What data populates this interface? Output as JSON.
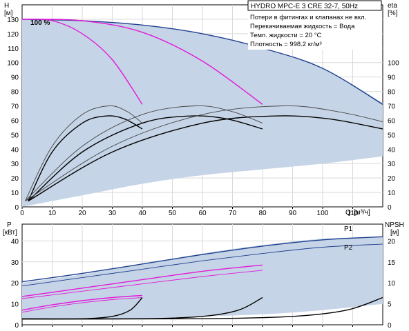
{
  "chart_data": [
    {
      "type": "line",
      "name_box": "HYDRO MPC-E 3 CRE 32-7, 50Hz",
      "info": [
        "Потери в фитингах и клапанах не вкл.",
        "Перекачиваемая жидкость = Вода",
        "Темп. жидкости = 20 °C",
        "Плотность = 998.2 кг/м³"
      ],
      "speed_label": "100 %",
      "ylabel_left": "H",
      "ylabel_left_unit": "[м]",
      "ylabel_right": "eta",
      "ylabel_right_unit": "[%]",
      "xlabel": "Q",
      "xlabel_unit": "[м³/ч]",
      "xlim": [
        0,
        120
      ],
      "ylim_left": [
        0,
        140
      ],
      "ylim_right": [
        0,
        140
      ],
      "xticks": [
        0,
        10,
        20,
        30,
        40,
        50,
        60,
        70,
        80,
        90,
        100,
        110
      ],
      "yticks_left": [
        0,
        10,
        20,
        30,
        40,
        50,
        60,
        70,
        80,
        90,
        100,
        110,
        120,
        130
      ],
      "yticks_right": [
        0,
        10,
        20,
        30,
        40,
        50,
        60,
        70,
        80,
        90,
        100
      ],
      "grid": true,
      "operating_area": {
        "upper": [
          [
            0,
            130
          ],
          [
            20,
            129
          ],
          [
            40,
            126
          ],
          [
            60,
            120
          ],
          [
            80,
            110
          ],
          [
            100,
            96
          ],
          [
            120,
            72
          ]
        ],
        "lower": [
          [
            0,
            0
          ],
          [
            20,
            8
          ],
          [
            40,
            16
          ],
          [
            60,
            22
          ],
          [
            80,
            26
          ],
          [
            100,
            30
          ],
          [
            120,
            35
          ]
        ]
      },
      "series": [
        {
          "role": "H max 3 pumps",
          "color": "#1f3f8f",
          "values": [
            [
              0,
              130
            ],
            [
              20,
              129
            ],
            [
              40,
              126
            ],
            [
              60,
              120
            ],
            [
              80,
              110
            ],
            [
              100,
              96
            ],
            [
              120,
              71
            ]
          ]
        },
        {
          "role": "H 1 pump",
          "color": "#e21ad8",
          "values": [
            [
              0,
              130
            ],
            [
              10,
              129
            ],
            [
              20,
              120
            ],
            [
              30,
              102
            ],
            [
              40,
              71
            ]
          ]
        },
        {
          "role": "H 2 pumps",
          "color": "#e21ad8",
          "values": [
            [
              0,
              130
            ],
            [
              20,
              129
            ],
            [
              40,
              121
            ],
            [
              60,
              101
            ],
            [
              80,
              71
            ]
          ]
        },
        {
          "role": "eta 1 pump thin",
          "color": "#444444",
          "values": [
            [
              1,
              4
            ],
            [
              10,
              42
            ],
            [
              20,
              64
            ],
            [
              29,
              70
            ],
            [
              35,
              66
            ],
            [
              40,
              58
            ]
          ]
        },
        {
          "role": "eta 1 pump",
          "color": "#000000",
          "values": [
            [
              2,
              4
            ],
            [
              10,
              38
            ],
            [
              20,
              58
            ],
            [
              28,
              63
            ],
            [
              34,
              61
            ],
            [
              40,
              54
            ]
          ]
        },
        {
          "role": "eta 2 pumps thin",
          "color": "#444444",
          "values": [
            [
              1,
              4
            ],
            [
              20,
              42
            ],
            [
              40,
              64
            ],
            [
              58,
              70
            ],
            [
              70,
              66
            ],
            [
              80,
              58
            ]
          ]
        },
        {
          "role": "eta 2 pumps",
          "color": "#000000",
          "values": [
            [
              2,
              4
            ],
            [
              20,
              38
            ],
            [
              40,
              58
            ],
            [
              56,
              63
            ],
            [
              68,
              61
            ],
            [
              80,
              54
            ]
          ]
        },
        {
          "role": "eta 3 pumps thin",
          "color": "#444444",
          "values": [
            [
              1,
              4
            ],
            [
              30,
              42
            ],
            [
              60,
              64
            ],
            [
              87,
              70
            ],
            [
              105,
              66
            ],
            [
              120,
              59
            ]
          ]
        },
        {
          "role": "eta 3 pumps",
          "color": "#000000",
          "values": [
            [
              2,
              4
            ],
            [
              30,
              38
            ],
            [
              60,
              58
            ],
            [
              84,
              63
            ],
            [
              102,
              61
            ],
            [
              120,
              54
            ]
          ]
        }
      ]
    },
    {
      "type": "line",
      "ylabel_left": "P",
      "ylabel_left_unit": "[кВт]",
      "ylabel_right": "NPSH",
      "ylabel_right_unit": "[м]",
      "xlim": [
        0,
        120
      ],
      "ylim_left": [
        0,
        48
      ],
      "ylim_right": [
        0,
        24
      ],
      "yticks_left": [
        0,
        10,
        20,
        30,
        40
      ],
      "yticks_right": [
        0,
        5,
        10,
        15,
        20
      ],
      "grid": true,
      "series_labels": [
        "P1",
        "P2"
      ],
      "operating_area": {
        "upper": [
          [
            0,
            20
          ],
          [
            20,
            24
          ],
          [
            40,
            29
          ],
          [
            60,
            34
          ],
          [
            80,
            38
          ],
          [
            100,
            41
          ],
          [
            120,
            42
          ]
        ],
        "lower": [
          [
            0,
            3
          ],
          [
            20,
            3
          ],
          [
            40,
            3
          ],
          [
            60,
            4
          ],
          [
            80,
            5
          ],
          [
            100,
            7
          ],
          [
            120,
            10
          ]
        ]
      },
      "series": [
        {
          "role": "P1 3 pumps",
          "color": "#1f3f8f",
          "values": [
            [
              0,
              20.5
            ],
            [
              20,
              24.5
            ],
            [
              40,
              29
            ],
            [
              60,
              33.5
            ],
            [
              80,
              37.5
            ],
            [
              100,
              40.5
            ],
            [
              120,
              42
            ]
          ]
        },
        {
          "role": "P2 3 pumps",
          "color": "#1f3f8f",
          "values": [
            [
              0,
              18.5
            ],
            [
              20,
              22.5
            ],
            [
              40,
              26.5
            ],
            [
              60,
              30.5
            ],
            [
              80,
              34
            ],
            [
              100,
              37
            ],
            [
              120,
              38.5
            ]
          ]
        },
        {
          "role": "P1 2 pumps",
          "color": "#e21ad8",
          "values": [
            [
              0,
              13.5
            ],
            [
              20,
              17.5
            ],
            [
              40,
              21.5
            ],
            [
              60,
              25.5
            ],
            [
              80,
              28.5
            ]
          ]
        },
        {
          "role": "P2 2 pumps",
          "color": "#e21ad8",
          "values": [
            [
              0,
              12.5
            ],
            [
              20,
              16
            ],
            [
              40,
              19.5
            ],
            [
              60,
              23
            ],
            [
              80,
              26
            ]
          ]
        },
        {
          "role": "P1 1 pump",
          "color": "#e21ad8",
          "values": [
            [
              0,
              7
            ],
            [
              10,
              9.5
            ],
            [
              20,
              11.5
            ],
            [
              30,
              13
            ],
            [
              40,
              14
            ]
          ]
        },
        {
          "role": "P2 1 pump",
          "color": "#e21ad8",
          "values": [
            [
              0,
              6
            ],
            [
              10,
              8.5
            ],
            [
              20,
              10.5
            ],
            [
              30,
              12
            ],
            [
              40,
              13
            ]
          ]
        },
        {
          "role": "NPSH 1 pump",
          "color": "#000000",
          "axis": "right",
          "values": [
            [
              0,
              1.4
            ],
            [
              20,
              1.45
            ],
            [
              30,
              2
            ],
            [
              36,
              3.5
            ],
            [
              40,
              6.5
            ]
          ]
        },
        {
          "role": "NPSH 2 pumps",
          "color": "#000000",
          "axis": "right",
          "values": [
            [
              0,
              1.4
            ],
            [
              40,
              1.45
            ],
            [
              60,
              2
            ],
            [
              72,
              3.5
            ],
            [
              80,
              6.5
            ]
          ]
        },
        {
          "role": "NPSH 3 pumps",
          "color": "#000000",
          "axis": "right",
          "values": [
            [
              0,
              1.4
            ],
            [
              60,
              1.45
            ],
            [
              90,
              2
            ],
            [
              108,
              3.5
            ],
            [
              120,
              6.5
            ]
          ]
        }
      ]
    }
  ]
}
